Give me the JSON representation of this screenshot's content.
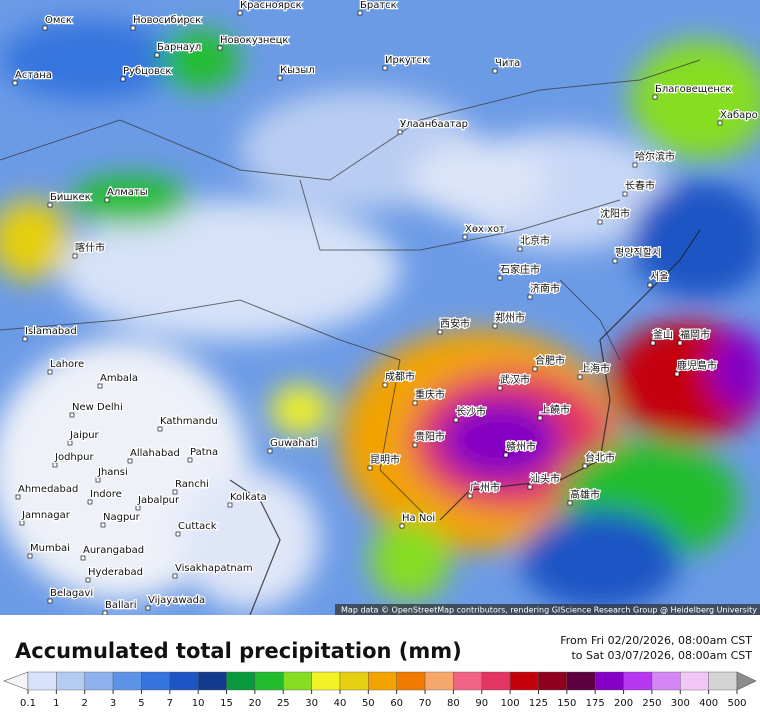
{
  "map": {
    "title": "Accumulated total precipitation (mm)",
    "period": [
      "From Fri 02/20/2026, 08:00am CST",
      "to Sat 03/07/2026, 08:00am CST"
    ],
    "attribution": "Map data © OpenStreetMap contributors, rendering GIScience Research Group @ Heidelberg University",
    "places": [
      "Омск",
      "Новосибирск",
      "Красноярск",
      "Братск",
      "Барнаул",
      "Новокузнецк",
      "Астана",
      "Рубцовск",
      "Кызыл",
      "Иркутск",
      "Чита",
      "Благовещенск",
      "Улаанбаатар",
      "Хабаро",
      "哈尔滨市",
      "长春市",
      "沈阳市",
      "Бишкек",
      "Алматы",
      "Хөх хот",
      "北京市",
      "石家庄市",
      "평양직할시",
      "济南市",
      "서울",
      "西安市",
      "郑州市",
      "合肥市",
      "上海市",
      "武汉市",
      "成都市",
      "重庆市",
      "长沙市",
      "上饒市",
      "贵阳市",
      "赣州市",
      "昆明市",
      "台北市",
      "广州市",
      "汕头市",
      "高雄市",
      "Ha Noi",
      "Islamabad",
      "Lahore",
      "Ambala",
      "New Delhi",
      "Jaipur",
      "Kathmandu",
      "Guwahati",
      "Patna",
      "Allahabad",
      "Jodhpur",
      "Jhansi",
      "Ranchi",
      "Ahmedabad",
      "Indore",
      "Jabalpur",
      "Kolkata",
      "Jamnagar",
      "Nagpur",
      "Cuttack",
      "Mumbai",
      "Aurangabad",
      "Hyderabad",
      "Visakhapatnam",
      "Belagavi",
      "Vijayawada",
      "Ballari",
      "喀什市",
      "鹿児島市",
      "福岡市",
      "釜山"
    ]
  },
  "legend": {
    "ticks": [
      0.1,
      1,
      2,
      3,
      5,
      7,
      10,
      15,
      20,
      25,
      30,
      40,
      50,
      60,
      70,
      80,
      90,
      100,
      125,
      150,
      175,
      200,
      250,
      300,
      400,
      500
    ],
    "colors": [
      "#f4f4f8",
      "#d8e2f8",
      "#b4cbf2",
      "#8db2ee",
      "#5d93e6",
      "#3574de",
      "#1d55c4",
      "#123a8e",
      "#0a9a3e",
      "#22bd2e",
      "#86dd22",
      "#f2f226",
      "#e6cf10",
      "#f2a300",
      "#f07a00",
      "#f5a86a",
      "#f26484",
      "#e23562",
      "#c40008",
      "#8e001e",
      "#5e0040",
      "#8400c4",
      "#b636f2",
      "#d486f6",
      "#f2c6f6",
      "#d4d4d4",
      "#8c8c8c"
    ]
  }
}
